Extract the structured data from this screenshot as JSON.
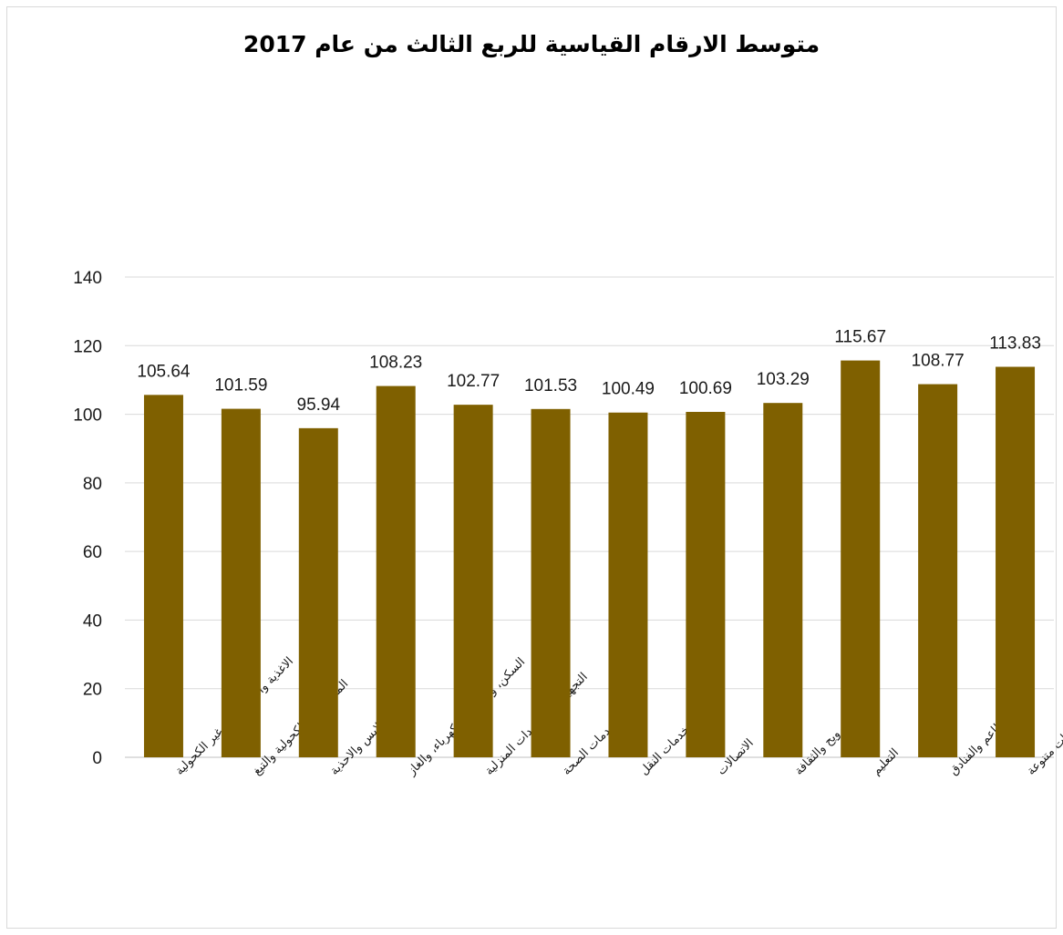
{
  "chart_data": {
    "type": "bar",
    "title": "متوسط الارقام القياسية للربع الثالث من عام 2017",
    "categories": [
      "الاغذية والمشروبات غير الكحولية",
      "المشروبات الكحولية والتبغ",
      "الملابس والاحذية",
      "السكن، والمياه، والكهرباء، والغاز",
      "التجهيزات والمعدات المنزلية",
      "خدمات الصحة",
      "خدمات النقل",
      "الاتصالات",
      "الترويح والثقافة",
      "التعليم",
      "المطاعم والفنادق",
      "سلع وخدمات متنوعة"
    ],
    "values": [
      105.64,
      101.59,
      95.94,
      108.23,
      102.77,
      101.53,
      100.49,
      100.69,
      103.29,
      115.67,
      108.77,
      113.83
    ],
    "data_labels": [
      "105.64",
      "101.59",
      "95.94",
      "108.23",
      "102.77",
      "101.53",
      "100.49",
      "100.69",
      "103.29",
      "115.67",
      "108.77",
      "113.83"
    ],
    "yticks": [
      "0",
      "20",
      "40",
      "60",
      "80",
      "100",
      "120",
      "140"
    ],
    "ylim": [
      0,
      140
    ],
    "grid": true,
    "legend": "none",
    "bar_color": "#7f6000",
    "xlabel": "",
    "ylabel": ""
  }
}
